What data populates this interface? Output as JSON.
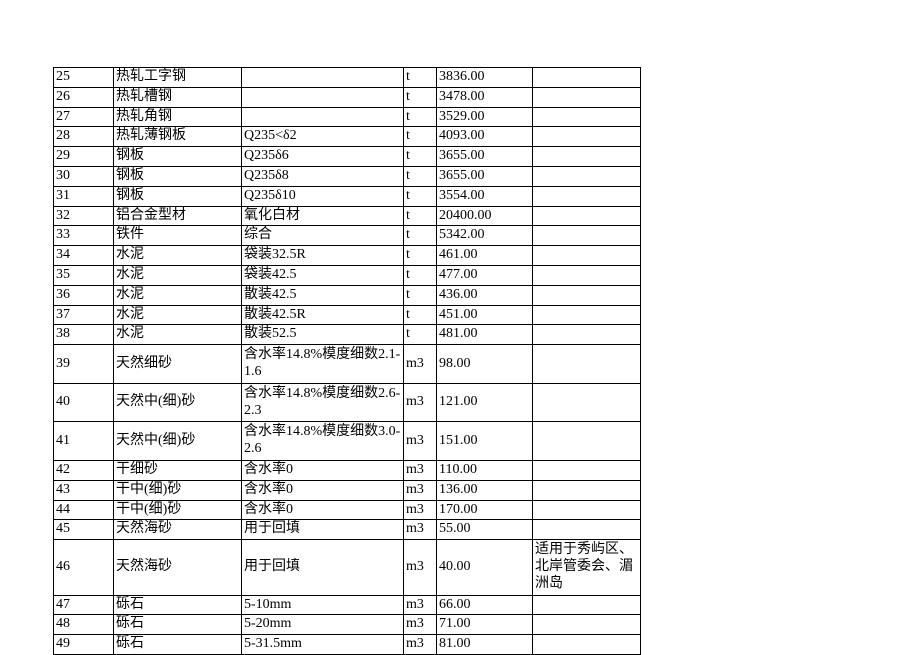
{
  "table": {
    "background_color": "#ffffff",
    "border_color": "#000000",
    "text_color": "#000000",
    "font_size": 14,
    "columns": [
      {
        "width": 60
      },
      {
        "width": 128
      },
      {
        "width": 162
      },
      {
        "width": 33
      },
      {
        "width": 96
      },
      {
        "width": 108
      }
    ],
    "rows": [
      [
        "25",
        "热轧工字钢",
        "",
        "t",
        "3836.00",
        ""
      ],
      [
        "26",
        "热轧槽钢",
        "",
        "t",
        "3478.00",
        ""
      ],
      [
        "27",
        "热轧角钢",
        "",
        "t",
        "3529.00",
        ""
      ],
      [
        "28",
        "热轧薄钢板",
        "Q235<δ2",
        "t",
        "4093.00",
        ""
      ],
      [
        "29",
        "钢板",
        "Q235δ6",
        "t",
        "3655.00",
        ""
      ],
      [
        "30",
        "钢板",
        "Q235δ8",
        "t",
        "3655.00",
        ""
      ],
      [
        "31",
        "钢板",
        "Q235δ10",
        "t",
        "3554.00",
        ""
      ],
      [
        "32",
        "铝合金型材",
        "氧化白材",
        "t",
        "20400.00",
        ""
      ],
      [
        "33",
        "铁件",
        "综合",
        "t",
        "5342.00",
        ""
      ],
      [
        "34",
        "水泥",
        "袋装32.5R",
        "t",
        "461.00",
        ""
      ],
      [
        "35",
        "水泥",
        "袋装42.5",
        "t",
        "477.00",
        ""
      ],
      [
        "36",
        "水泥",
        "散装42.5",
        "t",
        "436.00",
        ""
      ],
      [
        "37",
        "水泥",
        "散装42.5R",
        "t",
        "451.00",
        ""
      ],
      [
        "38",
        "水泥",
        "散装52.5",
        "t",
        "481.00",
        ""
      ],
      [
        "39",
        "天然细砂",
        "含水率14.8%模度细数2.1-1.6",
        "m3",
        "98.00",
        ""
      ],
      [
        "40",
        "天然中(细)砂",
        "含水率14.8%模度细数2.6-2.3",
        "m3",
        "121.00",
        ""
      ],
      [
        "41",
        "天然中(细)砂",
        "含水率14.8%模度细数3.0-2.6",
        "m3",
        "151.00",
        ""
      ],
      [
        "42",
        "干细砂",
        "含水率0",
        "m3",
        "110.00",
        ""
      ],
      [
        "43",
        "干中(细)砂",
        "含水率0",
        "m3",
        "136.00",
        ""
      ],
      [
        "44",
        "干中(细)砂",
        "含水率0",
        "m3",
        "170.00",
        ""
      ],
      [
        "45",
        "天然海砂",
        "用于回填",
        "m3",
        "55.00",
        ""
      ],
      [
        "46",
        "天然海砂",
        "用于回填",
        "m3",
        "40.00",
        "适用于秀屿区、北岸管委会、湄洲岛"
      ],
      [
        "47",
        "砾石",
        "5-10mm",
        "m3",
        "66.00",
        ""
      ],
      [
        "48",
        "砾石",
        "5-20mm",
        "m3",
        "71.00",
        ""
      ],
      [
        "49",
        "砾石",
        "5-31.5mm",
        "m3",
        "81.00",
        ""
      ]
    ],
    "multiline_rows": [
      14,
      15,
      16,
      21
    ]
  }
}
